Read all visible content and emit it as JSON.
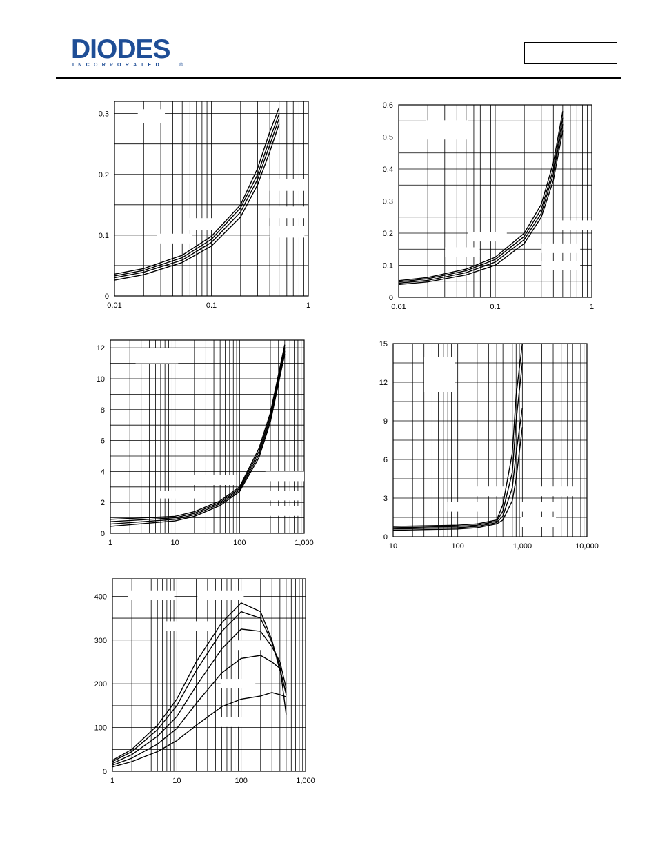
{
  "header": {
    "logo_text": "DIODES",
    "logo_subtext": "INCORPORATED",
    "registered_mark": "®",
    "brand_color": "#1f4e96",
    "part_number_box": ""
  },
  "chart_data": [
    {
      "id": "chart1",
      "type": "line",
      "xscale": "log",
      "xlim": [
        0.01,
        1
      ],
      "ylim": [
        0,
        0.32
      ],
      "x_ticks": [
        0.01,
        0.1,
        1
      ],
      "x_tick_labels": [
        "0.01",
        "0.1",
        "1"
      ],
      "y_ticks": [
        0,
        0.1,
        0.2,
        0.3
      ],
      "y_tick_labels": [
        "0",
        "0.1",
        "0.2",
        "0.3"
      ],
      "grid": true,
      "x": [
        0.01,
        0.02,
        0.05,
        0.1,
        0.2,
        0.3,
        0.4,
        0.5
      ],
      "series": [
        {
          "values": [
            0.036,
            0.045,
            0.067,
            0.098,
            0.15,
            0.21,
            0.27,
            0.31
          ]
        },
        {
          "values": [
            0.033,
            0.042,
            0.063,
            0.093,
            0.145,
            0.2,
            0.258,
            0.3
          ]
        },
        {
          "values": [
            0.03,
            0.039,
            0.059,
            0.088,
            0.138,
            0.192,
            0.248,
            0.292
          ]
        },
        {
          "values": [
            0.026,
            0.035,
            0.055,
            0.082,
            0.13,
            0.183,
            0.237,
            0.283
          ]
        }
      ]
    },
    {
      "id": "chart2",
      "type": "line",
      "xscale": "log",
      "xlim": [
        0.01,
        1
      ],
      "ylim": [
        0,
        0.6
      ],
      "x_ticks": [
        0.01,
        0.1,
        1
      ],
      "x_tick_labels": [
        "0.01",
        "0.1",
        "1"
      ],
      "y_ticks": [
        0,
        0.1,
        0.2,
        0.3,
        0.4,
        0.5,
        0.6
      ],
      "y_tick_labels": [
        "0",
        "0.1",
        "0.2",
        "0.3",
        "0.4",
        "0.5",
        "0.6"
      ],
      "grid": true,
      "x": [
        0.01,
        0.02,
        0.05,
        0.1,
        0.2,
        0.3,
        0.4,
        0.5
      ],
      "series": [
        {
          "values": [
            0.052,
            0.062,
            0.088,
            0.125,
            0.2,
            0.29,
            0.42,
            0.58
          ]
        },
        {
          "values": [
            0.048,
            0.058,
            0.083,
            0.118,
            0.19,
            0.275,
            0.4,
            0.56
          ]
        },
        {
          "values": [
            0.044,
            0.053,
            0.077,
            0.11,
            0.18,
            0.262,
            0.385,
            0.54
          ]
        },
        {
          "values": [
            0.04,
            0.048,
            0.07,
            0.1,
            0.168,
            0.25,
            0.365,
            0.52
          ]
        }
      ]
    },
    {
      "id": "chart3",
      "type": "line",
      "xscale": "log",
      "xlim": [
        1,
        1000
      ],
      "ylim": [
        0,
        12.5
      ],
      "x_ticks": [
        1,
        10,
        100,
        1000
      ],
      "x_tick_labels": [
        "1",
        "10",
        "100",
        "1,000"
      ],
      "y_ticks": [
        0,
        2,
        4,
        6,
        8,
        10,
        12
      ],
      "y_tick_labels": [
        "0",
        "2",
        "4",
        "6",
        "8",
        "10",
        "12"
      ],
      "grid": true,
      "x": [
        1,
        10,
        20,
        50,
        100,
        200,
        300,
        500
      ],
      "series": [
        {
          "values": [
            0.9,
            1.1,
            1.4,
            2.1,
            3.0,
            5.5,
            7.8,
            12.2
          ]
        },
        {
          "values": [
            0.75,
            1.0,
            1.3,
            2.0,
            2.9,
            5.3,
            7.6,
            12.0
          ]
        },
        {
          "values": [
            0.6,
            0.9,
            1.2,
            1.9,
            2.8,
            5.1,
            7.4,
            11.8
          ]
        },
        {
          "values": [
            0.45,
            0.8,
            1.1,
            1.8,
            2.7,
            4.9,
            7.2,
            11.6
          ]
        }
      ]
    },
    {
      "id": "chart4",
      "type": "line",
      "xscale": "log",
      "xlim": [
        10,
        10000
      ],
      "ylim": [
        0,
        15
      ],
      "x_ticks": [
        10,
        100,
        1000,
        10000
      ],
      "x_tick_labels": [
        "10",
        "100",
        "1,000",
        "10,000"
      ],
      "y_ticks": [
        0,
        3,
        6,
        9,
        12,
        15
      ],
      "y_tick_labels": [
        "0",
        "3",
        "6",
        "9",
        "12",
        "15"
      ],
      "grid": true,
      "x": [
        10,
        100,
        200,
        400,
        500,
        700,
        800,
        1000
      ],
      "series": [
        {
          "values": [
            0.8,
            0.9,
            1.0,
            1.3,
            2.5,
            6.5,
            11.0,
            15.0
          ]
        },
        {
          "values": [
            0.7,
            0.8,
            0.9,
            1.2,
            2.0,
            5.0,
            9.0,
            13.5
          ]
        },
        {
          "values": [
            0.6,
            0.7,
            0.8,
            1.1,
            1.6,
            3.8,
            6.5,
            10.0
          ]
        },
        {
          "values": [
            0.5,
            0.6,
            0.7,
            1.0,
            1.3,
            2.8,
            4.5,
            8.5
          ]
        }
      ]
    },
    {
      "id": "chart5",
      "type": "line",
      "xscale": "log",
      "xlim": [
        1,
        1000
      ],
      "ylim": [
        0,
        440
      ],
      "x_ticks": [
        1,
        10,
        100,
        1000
      ],
      "x_tick_labels": [
        "1",
        "10",
        "100",
        "1,000"
      ],
      "y_ticks": [
        0,
        100,
        200,
        300,
        400
      ],
      "y_tick_labels": [
        "0",
        "100",
        "200",
        "300",
        "400"
      ],
      "grid": true,
      "x": [
        1,
        2,
        5,
        10,
        20,
        50,
        100,
        200,
        300,
        400,
        500
      ],
      "series": [
        {
          "values": [
            25,
            50,
            105,
            165,
            250,
            340,
            385,
            365,
            300,
            230,
            180
          ]
        },
        {
          "values": [
            22,
            45,
            95,
            150,
            230,
            320,
            365,
            350,
            295,
            240,
            130
          ]
        },
        {
          "values": [
            18,
            38,
            80,
            125,
            195,
            280,
            325,
            320,
            285,
            250,
            190
          ]
        },
        {
          "values": [
            14,
            30,
            62,
            98,
            155,
            225,
            258,
            265,
            250,
            235,
            175
          ]
        },
        {
          "values": [
            10,
            22,
            45,
            70,
            105,
            148,
            165,
            172,
            180,
            175,
            170
          ]
        }
      ]
    }
  ]
}
